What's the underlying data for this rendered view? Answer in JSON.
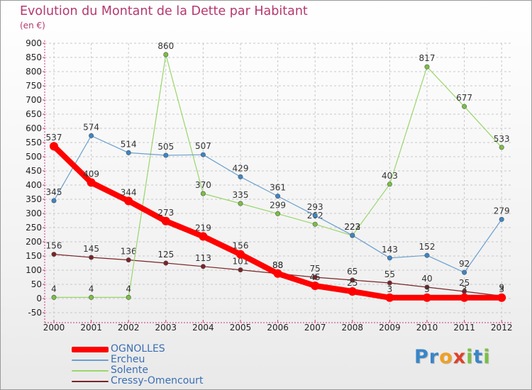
{
  "title": "Evolution du Montant de la Dette par Habitant",
  "subtitle": "(en €)",
  "logo": {
    "text": "Proxiti",
    "letters": [
      {
        "ch": "P",
        "color": "#3a86c8"
      },
      {
        "ch": "r",
        "color": "#3a86c8"
      },
      {
        "ch": "o",
        "color": "#f0a020"
      },
      {
        "ch": "x",
        "color": "#e0402a"
      },
      {
        "ch": "i",
        "color": "#7ac043"
      },
      {
        "ch": "t",
        "color": "#3a86c8"
      },
      {
        "ch": "i",
        "color": "#7ac043"
      }
    ]
  },
  "chart_data": {
    "type": "line",
    "title": "Evolution du Montant de la Dette par Habitant",
    "ylabel": "(en €)",
    "xlabel": "",
    "x": [
      "2000",
      "2001",
      "2002",
      "2003",
      "2004",
      "2005",
      "2006",
      "2007",
      "2008",
      "2009",
      "2010",
      "2011",
      "2012"
    ],
    "ylim": [
      -50,
      900
    ],
    "yticks": [
      -50,
      0,
      50,
      100,
      150,
      200,
      250,
      300,
      350,
      400,
      450,
      500,
      550,
      600,
      650,
      700,
      750,
      800,
      850,
      900
    ],
    "grid": true,
    "legend_position": "bottom-left",
    "series": [
      {
        "name": "Cressy-Omencourt",
        "color": "#7a2428",
        "marker": "#7a2428",
        "width": 1.2,
        "values": [
          156,
          145,
          136,
          125,
          113,
          101,
          88,
          75,
          65,
          55,
          40,
          25,
          9
        ]
      },
      {
        "name": "Solente",
        "color": "#9ad66a",
        "marker": "#7ac043",
        "width": 1.2,
        "values": [
          4,
          4,
          4,
          860,
          370,
          335,
          299,
          262,
          222,
          403,
          817,
          677,
          533
        ]
      },
      {
        "name": "Ercheu",
        "color": "#6a9fcf",
        "marker": "#3a86c8",
        "width": 1.2,
        "values": [
          345,
          574,
          514,
          505,
          507,
          429,
          361,
          293,
          223,
          143,
          152,
          92,
          279
        ]
      },
      {
        "name": "OGNOLLES",
        "color": "#ff0000",
        "marker": "#ff0000",
        "width": 8,
        "values": [
          537,
          409,
          344,
          273,
          219,
          156,
          88,
          45,
          25,
          3,
          3,
          3,
          3
        ]
      }
    ],
    "legend_order": [
      "OGNOLLES",
      "Ercheu",
      "Solente",
      "Cressy-Omencourt"
    ]
  }
}
